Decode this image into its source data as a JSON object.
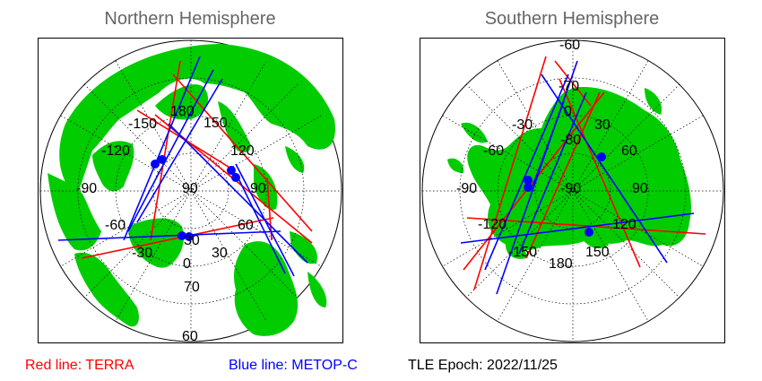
{
  "north": {
    "title": "Northern Hemisphere",
    "lon_labels": [
      {
        "text": "-150"
      },
      {
        "text": "180"
      },
      {
        "text": "150"
      },
      {
        "text": "-120"
      },
      {
        "text": "120"
      },
      {
        "text": "-90"
      },
      {
        "text": "90"
      },
      {
        "text": "90"
      },
      {
        "text": "-60"
      },
      {
        "text": "60"
      },
      {
        "text": "-30"
      },
      {
        "text": "30"
      },
      {
        "text": "0"
      },
      {
        "text": "30"
      },
      {
        "text": "70"
      },
      {
        "text": "60"
      }
    ]
  },
  "south": {
    "title": "Southern Hemisphere",
    "lon_labels": [
      {
        "text": "-60"
      },
      {
        "text": "-70"
      },
      {
        "text": "-30"
      },
      {
        "text": "0"
      },
      {
        "text": "30"
      },
      {
        "text": "-80"
      },
      {
        "text": "-60"
      },
      {
        "text": "60"
      },
      {
        "text": "-90"
      },
      {
        "text": "-90"
      },
      {
        "text": "90"
      },
      {
        "text": "-120"
      },
      {
        "text": "120"
      },
      {
        "text": "150"
      },
      {
        "text": "-150"
      },
      {
        "text": "180"
      }
    ]
  },
  "legend": {
    "terra": "Red line: TERRA",
    "metop": "Blue line: METOP-C",
    "epoch": "TLE Epoch: 2022/11/25"
  },
  "colors": {
    "land": "#00cc00",
    "terra": "#ff0000",
    "metop": "#0000ff",
    "title": "#666666"
  }
}
